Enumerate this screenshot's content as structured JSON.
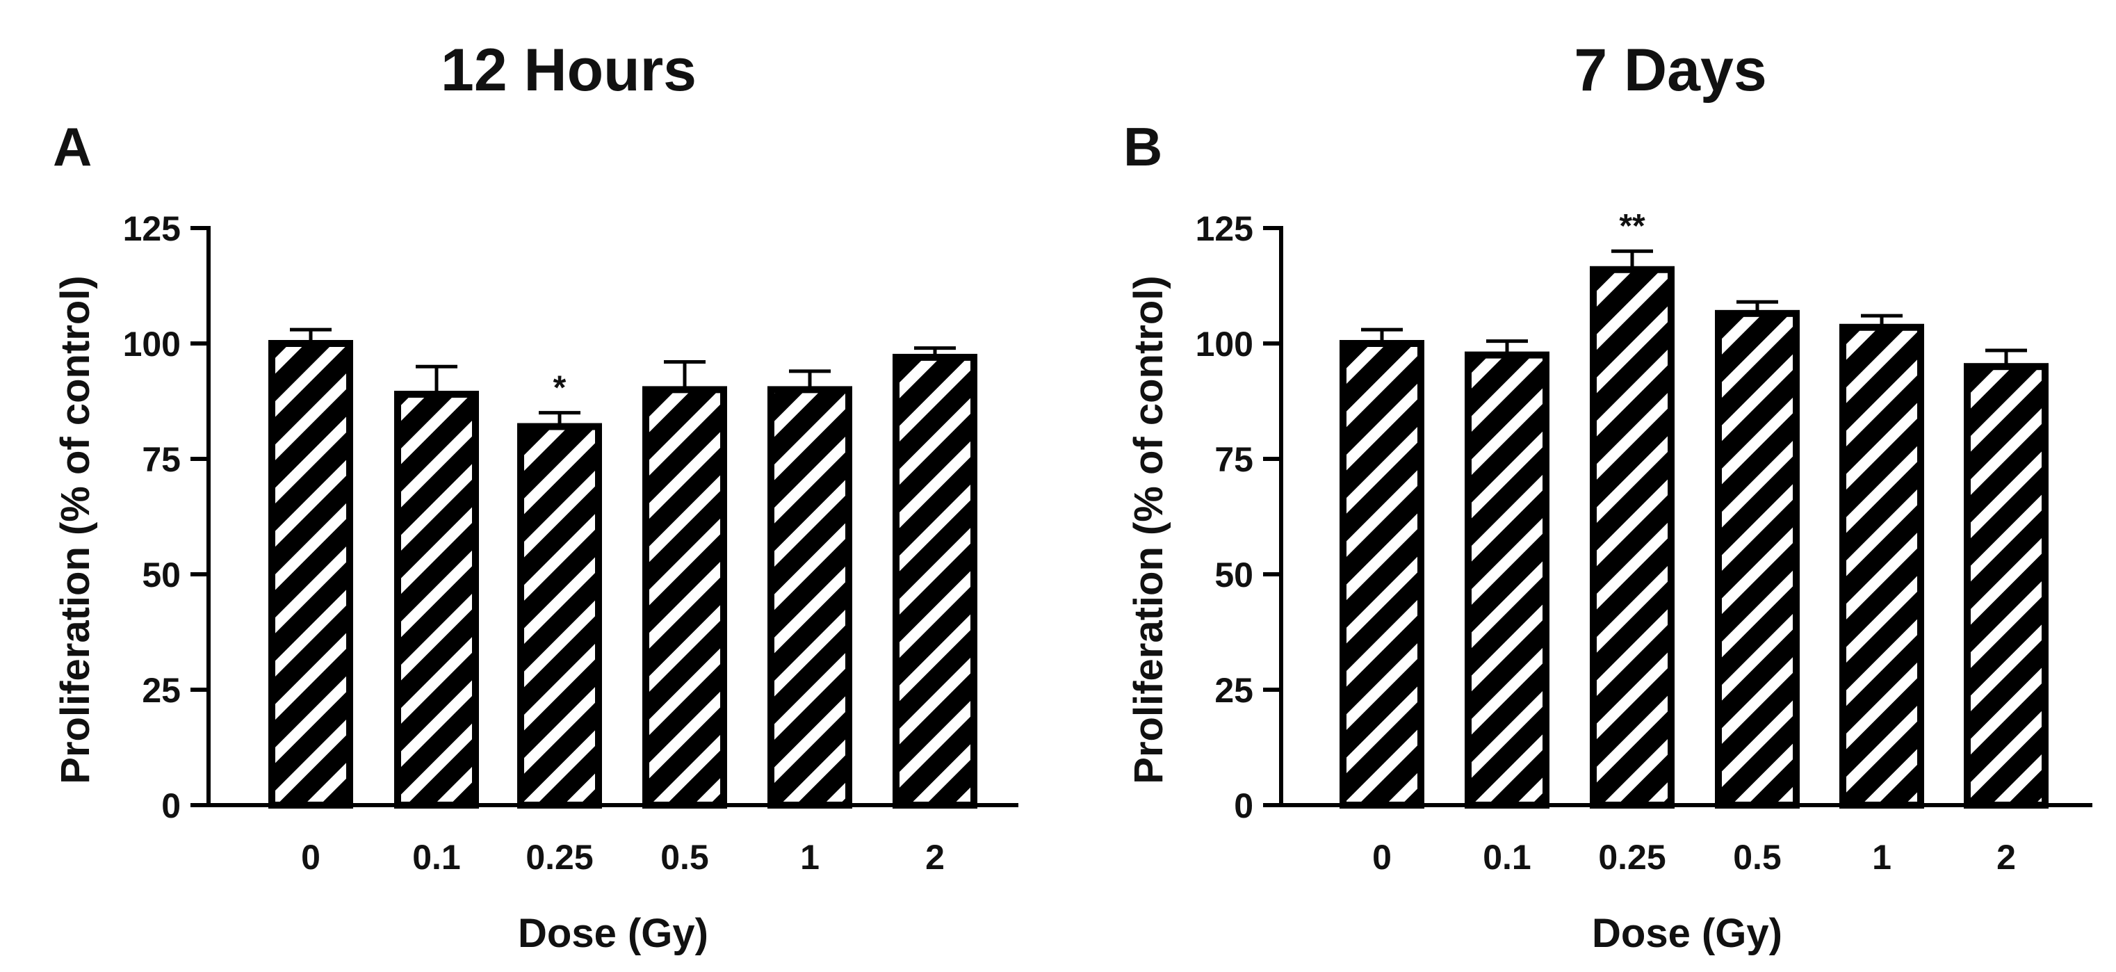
{
  "chart_data": [
    {
      "type": "bar",
      "panel_label": "A",
      "title": "12 Hours",
      "xlabel": "Dose (Gy)",
      "ylabel": "Proliferation (% of control)",
      "categories": [
        "0",
        "0.1",
        "0.25",
        "0.5",
        "1",
        "2"
      ],
      "values": [
        100,
        89,
        82,
        90,
        90,
        97
      ],
      "errors": [
        3,
        6,
        3,
        6,
        4,
        2
      ],
      "annotations": [
        "",
        "",
        "*",
        "",
        "",
        ""
      ],
      "ylim": [
        0,
        125
      ],
      "yticks": [
        "0",
        "25",
        "50",
        "75",
        "100",
        "125"
      ],
      "grid": false,
      "bar_fill": "diagonal black/white stripes",
      "colors": {
        "bar": "#000000",
        "stripe": "#ffffff"
      }
    },
    {
      "type": "bar",
      "panel_label": "B",
      "title": "7 Days",
      "xlabel": "Dose (Gy)",
      "ylabel": "Proliferation (% of control)",
      "categories": [
        "0",
        "0.1",
        "0.25",
        "0.5",
        "1",
        "2"
      ],
      "values": [
        100,
        97.5,
        116,
        106.5,
        103.5,
        95
      ],
      "errors": [
        3,
        3,
        4,
        2.5,
        2.5,
        3.5
      ],
      "annotations": [
        "",
        "",
        "**",
        "",
        "",
        ""
      ],
      "ylim": [
        0,
        125
      ],
      "yticks": [
        "0",
        "25",
        "50",
        "75",
        "100",
        "125"
      ],
      "grid": false,
      "bar_fill": "diagonal black/white stripes",
      "colors": {
        "bar": "#000000",
        "stripe": "#ffffff"
      }
    }
  ]
}
